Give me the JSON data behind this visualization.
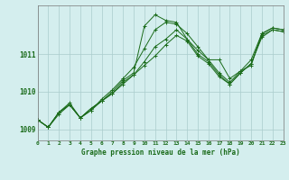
{
  "title": "Graphe pression niveau de la mer (hPa)",
  "bg_color": "#d4eeee",
  "grid_color": "#aacccc",
  "line_color": "#1a6b1a",
  "xlim": [
    0,
    23
  ],
  "ylim": [
    1008.7,
    1012.3
  ],
  "yticks": [
    1009,
    1010,
    1011
  ],
  "xticks": [
    0,
    1,
    2,
    3,
    4,
    5,
    6,
    7,
    8,
    9,
    10,
    11,
    12,
    13,
    14,
    15,
    16,
    17,
    18,
    19,
    20,
    21,
    22,
    23
  ],
  "series": [
    [
      1009.25,
      1009.05,
      1009.4,
      1009.65,
      1009.3,
      1009.55,
      1009.75,
      1010.0,
      1010.3,
      1010.5,
      1011.75,
      1012.05,
      1011.9,
      1011.85,
      1011.4,
      1011.1,
      1010.85,
      1010.85,
      1010.35,
      1010.55,
      1010.7,
      1011.55,
      1011.7,
      1011.65
    ],
    [
      1009.25,
      1009.05,
      1009.45,
      1009.7,
      1009.3,
      1009.5,
      1009.8,
      1010.05,
      1010.35,
      1010.65,
      1011.15,
      1011.65,
      1011.85,
      1011.8,
      1011.55,
      1011.2,
      1010.85,
      1010.5,
      1010.25,
      1010.55,
      1010.85,
      1011.55,
      1011.7,
      1011.65
    ],
    [
      1009.25,
      1009.05,
      1009.45,
      1009.65,
      1009.3,
      1009.55,
      1009.75,
      1009.95,
      1010.25,
      1010.45,
      1010.7,
      1010.95,
      1011.25,
      1011.5,
      1011.35,
      1010.95,
      1010.75,
      1010.4,
      1010.2,
      1010.5,
      1010.75,
      1011.45,
      1011.65,
      1011.6
    ],
    [
      1009.25,
      1009.05,
      1009.45,
      1009.65,
      1009.3,
      1009.5,
      1009.75,
      1009.95,
      1010.2,
      1010.45,
      1010.8,
      1011.2,
      1011.4,
      1011.65,
      1011.4,
      1011.0,
      1010.8,
      1010.45,
      1010.2,
      1010.5,
      1010.75,
      1011.5,
      1011.65,
      1011.6
    ]
  ]
}
